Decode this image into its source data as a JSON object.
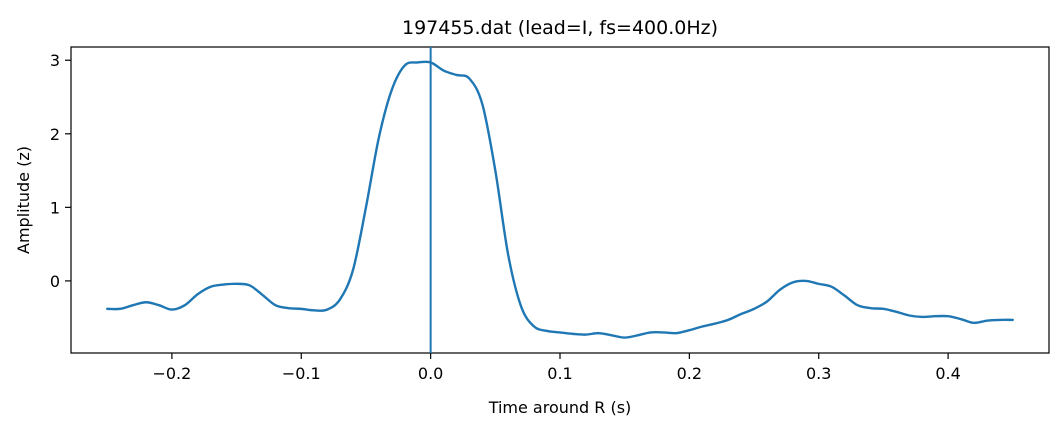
{
  "chart_data": {
    "type": "line",
    "title": "197455.dat (lead=I, fs=400.0Hz)",
    "xlabel": "Time around R (s)",
    "ylabel": "Amplitude (z)",
    "xlim": [
      -0.278,
      0.478
    ],
    "ylim": [
      -0.98,
      3.18
    ],
    "xticks": [
      -0.2,
      -0.1,
      0.0,
      0.1,
      0.2,
      0.3,
      0.4
    ],
    "xtick_labels": [
      "−0.2",
      "−0.1",
      "0.0",
      "0.1",
      "0.2",
      "0.3",
      "0.4"
    ],
    "yticks": [
      0,
      1,
      2,
      3
    ],
    "ytick_labels": [
      "0",
      "1",
      "2",
      "3"
    ],
    "grid": false,
    "line_color": "#1f77b4",
    "vline": {
      "x": 0.0,
      "color": "#1f77b4"
    },
    "series": [
      {
        "x": [
          -0.25,
          -0.24,
          -0.23,
          -0.22,
          -0.21,
          -0.2,
          -0.19,
          -0.18,
          -0.17,
          -0.16,
          -0.15,
          -0.14,
          -0.13,
          -0.12,
          -0.11,
          -0.1,
          -0.09,
          -0.08,
          -0.07,
          -0.06,
          -0.05,
          -0.04,
          -0.03,
          -0.02,
          -0.01,
          0.0,
          0.01,
          0.02,
          0.03,
          0.04,
          0.05,
          0.06,
          0.07,
          0.08,
          0.09,
          0.1,
          0.11,
          0.12,
          0.13,
          0.14,
          0.15,
          0.16,
          0.17,
          0.18,
          0.19,
          0.2,
          0.21,
          0.22,
          0.23,
          0.24,
          0.25,
          0.26,
          0.27,
          0.28,
          0.29,
          0.3,
          0.31,
          0.32,
          0.33,
          0.34,
          0.35,
          0.36,
          0.37,
          0.38,
          0.39,
          0.4,
          0.41,
          0.42,
          0.43,
          0.44,
          0.45
        ],
        "y": [
          -0.38,
          -0.38,
          -0.33,
          -0.29,
          -0.33,
          -0.39,
          -0.33,
          -0.18,
          -0.08,
          -0.05,
          -0.04,
          -0.06,
          -0.19,
          -0.33,
          -0.37,
          -0.38,
          -0.4,
          -0.39,
          -0.25,
          0.15,
          1.0,
          1.95,
          2.6,
          2.93,
          2.97,
          2.97,
          2.86,
          2.8,
          2.75,
          2.4,
          1.5,
          0.35,
          -0.35,
          -0.62,
          -0.68,
          -0.7,
          -0.72,
          -0.73,
          -0.71,
          -0.74,
          -0.77,
          -0.74,
          -0.7,
          -0.7,
          -0.71,
          -0.67,
          -0.62,
          -0.58,
          -0.53,
          -0.45,
          -0.38,
          -0.28,
          -0.12,
          -0.02,
          0.0,
          -0.04,
          -0.08,
          -0.2,
          -0.33,
          -0.37,
          -0.38,
          -0.42,
          -0.47,
          -0.49,
          -0.48,
          -0.48,
          -0.52,
          -0.57,
          -0.54,
          -0.53,
          -0.53
        ]
      }
    ]
  }
}
